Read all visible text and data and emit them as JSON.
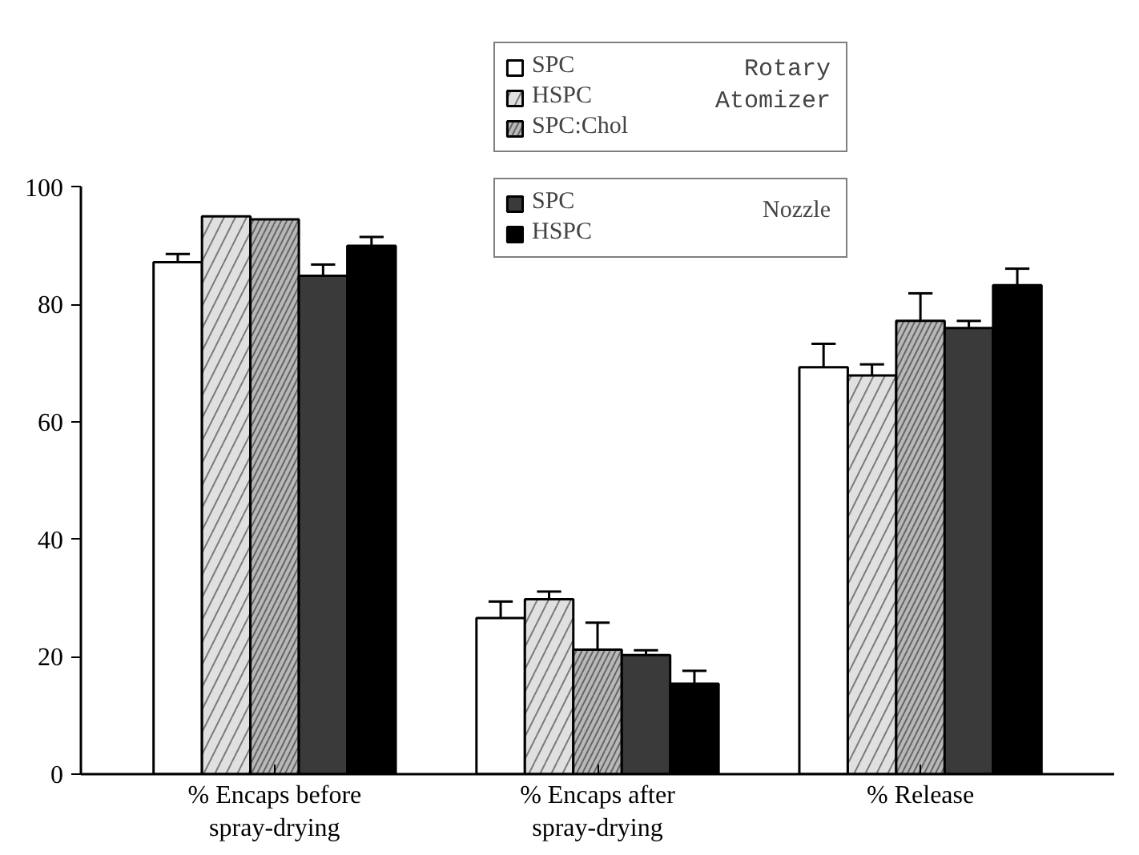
{
  "chart_data": {
    "type": "bar",
    "categories": [
      "% Encaps before spray-drying",
      "% Encaps after spray-drying",
      "% Release"
    ],
    "series": [
      {
        "name": "SPC",
        "color": "#ffffff",
        "values": [
          87.2,
          26.6,
          69.3
        ],
        "errors": [
          [
            87.2,
            88.6
          ],
          [
            26.6,
            29.4
          ],
          [
            69.3,
            73.3
          ]
        ]
      },
      {
        "name": "HSPC",
        "color": "#e0e0e0",
        "values": [
          95,
          29.8,
          67.9
        ],
        "errors": [
          null,
          [
            29.8,
            31.1
          ],
          [
            67.9,
            69.8
          ]
        ]
      },
      {
        "name": "SPC:Chol",
        "color": "#b8b8b8",
        "values": [
          94.5,
          21.2,
          77.2
        ],
        "errors": [
          null,
          [
            21.2,
            25.8
          ],
          [
            77.2,
            81.9
          ]
        ]
      },
      {
        "name": "SPC",
        "color": "#3a3a3a",
        "values": [
          84.9,
          20.3,
          76
        ],
        "errors": [
          [
            84.9,
            86.8
          ],
          [
            20.3,
            21.1
          ],
          [
            76,
            77.2
          ]
        ]
      },
      {
        "name": "HSPC",
        "color": "#000000",
        "values": [
          90,
          15.4,
          83.3
        ],
        "errors": [
          [
            90,
            91.5
          ],
          [
            15.4,
            17.6
          ],
          [
            83.3,
            86.1
          ]
        ]
      }
    ],
    "ylim": [
      0,
      100
    ],
    "yticks": [
      0,
      20,
      40,
      60,
      80,
      100
    ],
    "grid": false,
    "legend": "top",
    "annotations": [
      "Rotary Atomizer",
      "Nozzle"
    ]
  }
}
